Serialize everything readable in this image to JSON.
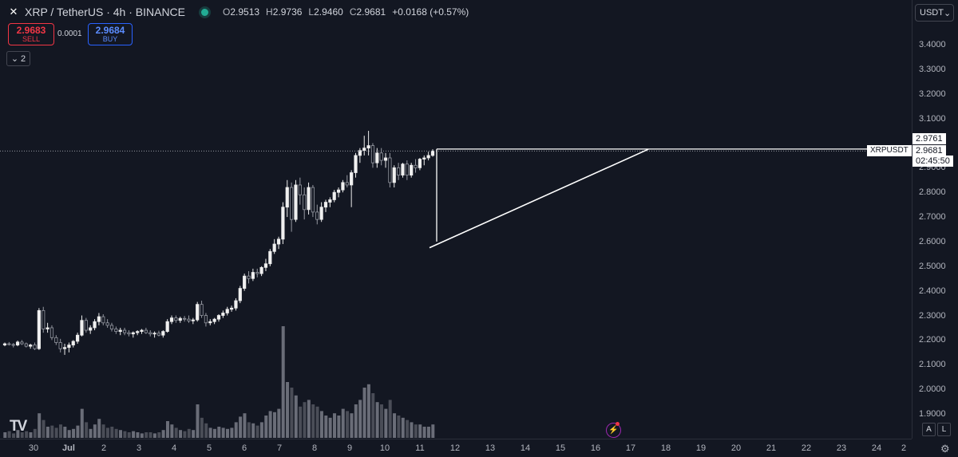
{
  "header": {
    "symbol_title": "XRP / TetherUS · 4h · BINANCE",
    "symbol_icon": "xrp-icon",
    "ohlc": {
      "o_label": "O",
      "o": "2.9513",
      "h_label": "H",
      "h": "2.9736",
      "l_label": "L",
      "l": "2.9460",
      "c_label": "C",
      "c": "2.9681",
      "change": "+0.0168 (+0.57%)"
    }
  },
  "trade": {
    "sell_price": "2.9683",
    "sell_label": "SELL",
    "spread": "0.0001",
    "buy_price": "2.9684",
    "buy_label": "BUY"
  },
  "collapse_count": "2",
  "currency_selector": "USDT",
  "price_axis": {
    "ticks": [
      "3.4000",
      "3.3000",
      "3.2000",
      "3.1000",
      "2.9000",
      "2.8000",
      "2.7000",
      "2.6000",
      "2.5000",
      "2.4000",
      "2.3000",
      "2.2000",
      "2.1000",
      "2.0000",
      "1.9000"
    ],
    "top_label": "2.9761",
    "current_label": "2.9681",
    "countdown": "02:45:50",
    "symbol_tag": "XRPUSDT"
  },
  "time_axis": {
    "ticks": [
      "30",
      "Jul",
      "2",
      "3",
      "4",
      "5",
      "6",
      "7",
      "8",
      "9",
      "10",
      "11",
      "12",
      "13",
      "14",
      "15",
      "16",
      "17",
      "18",
      "19",
      "20",
      "21",
      "22",
      "23",
      "24",
      "2"
    ]
  },
  "footer": {
    "auto_label": "A",
    "log_label": "L",
    "settings_icon": "gear-icon",
    "logo_text": "TV"
  },
  "colors": {
    "background": "#131722",
    "candle": "#e8e8e8",
    "volume": "#5d606b",
    "drawing": "#ffffff"
  },
  "chart_data": {
    "type": "candlestick",
    "symbol": "XRPUSDT",
    "interval": "4h",
    "ylim": [
      1.85,
      3.45
    ],
    "resistance": 2.9761,
    "current": 2.9681,
    "candles": [
      [
        2.18,
        2.19,
        2.175,
        2.185,
        5
      ],
      [
        2.185,
        2.192,
        2.178,
        2.182,
        6
      ],
      [
        2.182,
        2.188,
        2.17,
        2.18,
        4
      ],
      [
        2.18,
        2.198,
        2.175,
        2.192,
        7
      ],
      [
        2.192,
        2.2,
        2.18,
        2.185,
        5
      ],
      [
        2.185,
        2.19,
        2.17,
        2.175,
        6
      ],
      [
        2.175,
        2.185,
        2.165,
        2.18,
        5
      ],
      [
        2.18,
        2.19,
        2.16,
        2.165,
        8
      ],
      [
        2.165,
        2.33,
        2.16,
        2.32,
        22
      ],
      [
        2.32,
        2.335,
        2.23,
        2.245,
        16
      ],
      [
        2.245,
        2.27,
        2.23,
        2.25,
        10
      ],
      [
        2.25,
        2.26,
        2.2,
        2.21,
        11
      ],
      [
        2.21,
        2.22,
        2.18,
        2.19,
        9
      ],
      [
        2.19,
        2.205,
        2.15,
        2.165,
        12
      ],
      [
        2.165,
        2.185,
        2.14,
        2.17,
        10
      ],
      [
        2.17,
        2.19,
        2.15,
        2.18,
        7
      ],
      [
        2.18,
        2.2,
        2.17,
        2.195,
        8
      ],
      [
        2.195,
        2.23,
        2.185,
        2.22,
        11
      ],
      [
        2.22,
        2.3,
        2.215,
        2.28,
        26
      ],
      [
        2.28,
        2.29,
        2.23,
        2.24,
        14
      ],
      [
        2.24,
        2.26,
        2.225,
        2.25,
        8
      ],
      [
        2.25,
        2.285,
        2.24,
        2.275,
        12
      ],
      [
        2.275,
        2.31,
        2.26,
        2.295,
        17
      ],
      [
        2.295,
        2.305,
        2.26,
        2.27,
        12
      ],
      [
        2.27,
        2.285,
        2.25,
        2.26,
        9
      ],
      [
        2.26,
        2.27,
        2.235,
        2.245,
        10
      ],
      [
        2.245,
        2.255,
        2.225,
        2.235,
        8
      ],
      [
        2.235,
        2.25,
        2.22,
        2.24,
        7
      ],
      [
        2.24,
        2.25,
        2.22,
        2.23,
        6
      ],
      [
        2.23,
        2.24,
        2.215,
        2.225,
        5
      ],
      [
        2.225,
        2.235,
        2.21,
        2.23,
        6
      ],
      [
        2.23,
        2.24,
        2.22,
        2.235,
        5
      ],
      [
        2.235,
        2.245,
        2.225,
        2.24,
        4
      ],
      [
        2.24,
        2.25,
        2.225,
        2.23,
        5
      ],
      [
        2.23,
        2.24,
        2.215,
        2.225,
        5
      ],
      [
        2.225,
        2.235,
        2.21,
        2.228,
        4
      ],
      [
        2.228,
        2.238,
        2.215,
        2.22,
        5
      ],
      [
        2.22,
        2.24,
        2.21,
        2.235,
        7
      ],
      [
        2.235,
        2.285,
        2.23,
        2.275,
        15
      ],
      [
        2.275,
        2.3,
        2.265,
        2.29,
        12
      ],
      [
        2.29,
        2.3,
        2.27,
        2.28,
        9
      ],
      [
        2.28,
        2.295,
        2.27,
        2.288,
        7
      ],
      [
        2.288,
        2.298,
        2.275,
        2.285,
        6
      ],
      [
        2.285,
        2.3,
        2.27,
        2.278,
        8
      ],
      [
        2.278,
        2.29,
        2.265,
        2.282,
        7
      ],
      [
        2.282,
        2.355,
        2.275,
        2.345,
        30
      ],
      [
        2.345,
        2.36,
        2.29,
        2.3,
        18
      ],
      [
        2.3,
        2.31,
        2.255,
        2.27,
        13
      ],
      [
        2.27,
        2.285,
        2.26,
        2.275,
        9
      ],
      [
        2.275,
        2.29,
        2.265,
        2.285,
        8
      ],
      [
        2.285,
        2.305,
        2.275,
        2.3,
        10
      ],
      [
        2.3,
        2.32,
        2.29,
        2.31,
        9
      ],
      [
        2.31,
        2.335,
        2.3,
        2.325,
        8
      ],
      [
        2.325,
        2.34,
        2.315,
        2.33,
        9
      ],
      [
        2.33,
        2.37,
        2.32,
        2.36,
        14
      ],
      [
        2.36,
        2.42,
        2.35,
        2.41,
        19
      ],
      [
        2.41,
        2.47,
        2.4,
        2.46,
        22
      ],
      [
        2.46,
        2.48,
        2.43,
        2.45,
        14
      ],
      [
        2.45,
        2.49,
        2.44,
        2.475,
        13
      ],
      [
        2.475,
        2.49,
        2.455,
        2.47,
        11
      ],
      [
        2.47,
        2.5,
        2.46,
        2.495,
        14
      ],
      [
        2.495,
        2.53,
        2.48,
        2.51,
        20
      ],
      [
        2.51,
        2.57,
        2.5,
        2.56,
        24
      ],
      [
        2.56,
        2.61,
        2.55,
        2.59,
        23
      ],
      [
        2.59,
        2.62,
        2.57,
        2.61,
        26
      ],
      [
        2.61,
        2.76,
        2.59,
        2.74,
        100
      ],
      [
        2.74,
        2.85,
        2.7,
        2.82,
        50
      ],
      [
        2.82,
        2.84,
        2.64,
        2.69,
        45
      ],
      [
        2.69,
        2.85,
        2.68,
        2.83,
        38
      ],
      [
        2.83,
        2.86,
        2.75,
        2.79,
        28
      ],
      [
        2.79,
        2.82,
        2.69,
        2.73,
        32
      ],
      [
        2.73,
        2.84,
        2.71,
        2.82,
        34
      ],
      [
        2.82,
        2.83,
        2.7,
        2.72,
        30
      ],
      [
        2.72,
        2.75,
        2.67,
        2.69,
        28
      ],
      [
        2.69,
        2.76,
        2.68,
        2.74,
        24
      ],
      [
        2.74,
        2.77,
        2.72,
        2.76,
        20
      ],
      [
        2.76,
        2.78,
        2.74,
        2.77,
        18
      ],
      [
        2.77,
        2.81,
        2.76,
        2.8,
        22
      ],
      [
        2.8,
        2.82,
        2.78,
        2.81,
        20
      ],
      [
        2.81,
        2.85,
        2.8,
        2.84,
        26
      ],
      [
        2.84,
        2.87,
        2.82,
        2.83,
        24
      ],
      [
        2.83,
        2.89,
        2.74,
        2.88,
        22
      ],
      [
        2.88,
        2.96,
        2.86,
        2.95,
        30
      ],
      [
        2.95,
        2.98,
        2.92,
        2.97,
        34
      ],
      [
        2.97,
        3.03,
        2.95,
        2.98,
        45
      ],
      [
        2.98,
        3.05,
        2.95,
        2.99,
        48
      ],
      [
        2.99,
        3.0,
        2.9,
        2.92,
        40
      ],
      [
        2.92,
        2.98,
        2.9,
        2.96,
        32
      ],
      [
        2.96,
        2.98,
        2.91,
        2.93,
        30
      ],
      [
        2.93,
        2.96,
        2.9,
        2.94,
        26
      ],
      [
        2.94,
        2.96,
        2.82,
        2.84,
        34
      ],
      [
        2.84,
        2.91,
        2.82,
        2.9,
        22
      ],
      [
        2.9,
        2.92,
        2.85,
        2.87,
        20
      ],
      [
        2.87,
        2.92,
        2.86,
        2.915,
        18
      ],
      [
        2.915,
        2.93,
        2.85,
        2.87,
        16
      ],
      [
        2.87,
        2.92,
        2.86,
        2.91,
        14
      ],
      [
        2.91,
        2.935,
        2.88,
        2.9,
        12
      ],
      [
        2.9,
        2.94,
        2.89,
        2.935,
        12
      ],
      [
        2.935,
        2.95,
        2.91,
        2.94,
        10
      ],
      [
        2.94,
        2.965,
        2.93,
        2.95,
        10
      ],
      [
        2.95,
        2.975,
        2.945,
        2.968,
        12
      ]
    ]
  }
}
